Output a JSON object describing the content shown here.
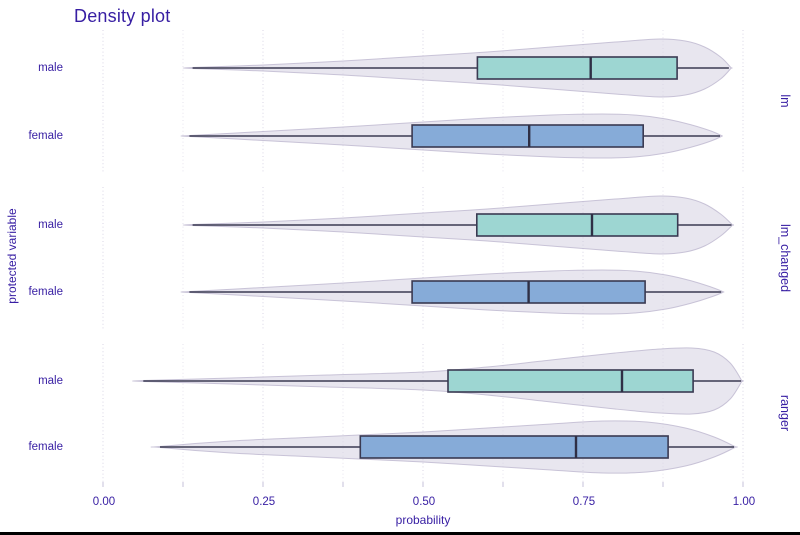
{
  "title": "Density plot",
  "x_axis": {
    "label": "probability",
    "ticks": [
      {
        "label": "0.00",
        "value": 0
      },
      {
        "label": "0.25",
        "value": 0.25
      },
      {
        "label": "0.50",
        "value": 0.5
      },
      {
        "label": "0.75",
        "value": 0.75
      },
      {
        "label": "1.00",
        "value": 1.0
      }
    ],
    "minor_values": [
      0.125,
      0.375,
      0.625,
      0.875
    ],
    "range": [
      0,
      1
    ]
  },
  "y_axis": {
    "label": "protected variable",
    "categories": [
      "male",
      "female"
    ]
  },
  "colors": {
    "text": "#371ea3",
    "male_fill": "#9dd6d2",
    "female_fill": "#86abd8",
    "box_border": "#3a3a52",
    "whisker": "#3a3a52",
    "median": "#2f2f45",
    "violin_fill": "rgba(210,206,224,0.5)",
    "violin_border": "rgba(185,179,204,0.75)",
    "grid_major": "rgba(190,185,212,0.6)",
    "grid_minor": "rgba(205,200,222,0.5)",
    "axis_tick": "#cfcbdf"
  },
  "chart_data": {
    "type": "horizontal violin + box plot, faceted by model",
    "xlabel": "probability",
    "ylabel": "protected variable",
    "xlim": [
      0,
      1
    ],
    "grid": "dotted vertical, major 0.25 / minor 0.125",
    "legend_position": "none",
    "facet_position": "right strips, rotated 90deg",
    "facets": [
      {
        "name": "lm",
        "rows": [
          {
            "group": "male",
            "min": 0.14,
            "q1": 0.585,
            "median": 0.762,
            "q3": 0.897,
            "max": 0.978,
            "violin_profile": [
              [
                0.139,
                0.5
              ],
              [
                0.25,
                3
              ],
              [
                0.375,
                7
              ],
              [
                0.5,
                12
              ],
              [
                0.6,
                16
              ],
              [
                0.7,
                21
              ],
              [
                0.8,
                26
              ],
              [
                0.87,
                29
              ],
              [
                0.91,
                27
              ],
              [
                0.94,
                21
              ],
              [
                0.965,
                11
              ],
              [
                0.981,
                0.5
              ]
            ]
          },
          {
            "group": "female",
            "min": 0.135,
            "q1": 0.483,
            "median": 0.666,
            "q3": 0.844,
            "max": 0.964,
            "violin_profile": [
              [
                0.136,
                0.5
              ],
              [
                0.25,
                4.5
              ],
              [
                0.375,
                9
              ],
              [
                0.5,
                14
              ],
              [
                0.6,
                18
              ],
              [
                0.7,
                21
              ],
              [
                0.78,
                22
              ],
              [
                0.83,
                21
              ],
              [
                0.88,
                17
              ],
              [
                0.92,
                11
              ],
              [
                0.95,
                5
              ],
              [
                0.966,
                0.5
              ]
            ]
          }
        ]
      },
      {
        "name": "lm_changed",
        "rows": [
          {
            "group": "male",
            "min": 0.14,
            "q1": 0.584,
            "median": 0.764,
            "q3": 0.898,
            "max": 0.982,
            "violin_profile": [
              [
                0.139,
                0.5
              ],
              [
                0.25,
                3
              ],
              [
                0.375,
                7
              ],
              [
                0.5,
                12
              ],
              [
                0.6,
                16
              ],
              [
                0.7,
                21
              ],
              [
                0.8,
                26
              ],
              [
                0.87,
                29
              ],
              [
                0.91,
                27
              ],
              [
                0.94,
                21
              ],
              [
                0.965,
                11
              ],
              [
                0.983,
                0.5
              ]
            ]
          },
          {
            "group": "female",
            "min": 0.135,
            "q1": 0.483,
            "median": 0.665,
            "q3": 0.847,
            "max": 0.966,
            "violin_profile": [
              [
                0.136,
                0.5
              ],
              [
                0.25,
                4.5
              ],
              [
                0.375,
                9
              ],
              [
                0.5,
                14
              ],
              [
                0.6,
                18
              ],
              [
                0.7,
                21
              ],
              [
                0.78,
                22
              ],
              [
                0.83,
                21
              ],
              [
                0.88,
                17
              ],
              [
                0.92,
                11
              ],
              [
                0.95,
                5
              ],
              [
                0.968,
                0.5
              ]
            ]
          }
        ]
      },
      {
        "name": "ranger",
        "rows": [
          {
            "group": "male",
            "min": 0.063,
            "q1": 0.539,
            "median": 0.811,
            "q3": 0.922,
            "max": 0.997,
            "violin_profile": [
              [
                0.063,
                0.5
              ],
              [
                0.2,
                3
              ],
              [
                0.35,
                6
              ],
              [
                0.5,
                9
              ],
              [
                0.6,
                14
              ],
              [
                0.7,
                21
              ],
              [
                0.8,
                28
              ],
              [
                0.87,
                32
              ],
              [
                0.92,
                33
              ],
              [
                0.955,
                29
              ],
              [
                0.98,
                18
              ],
              [
                0.998,
                0.5
              ]
            ]
          },
          {
            "group": "female",
            "min": 0.089,
            "q1": 0.402,
            "median": 0.739,
            "q3": 0.883,
            "max": 0.986,
            "violin_profile": [
              [
                0.089,
                0.5
              ],
              [
                0.2,
                6
              ],
              [
                0.3,
                9
              ],
              [
                0.4,
                12
              ],
              [
                0.5,
                15
              ],
              [
                0.6,
                19
              ],
              [
                0.7,
                23
              ],
              [
                0.78,
                26
              ],
              [
                0.85,
                25
              ],
              [
                0.91,
                19
              ],
              [
                0.955,
                10
              ],
              [
                0.987,
                0.5
              ]
            ]
          }
        ]
      }
    ]
  }
}
